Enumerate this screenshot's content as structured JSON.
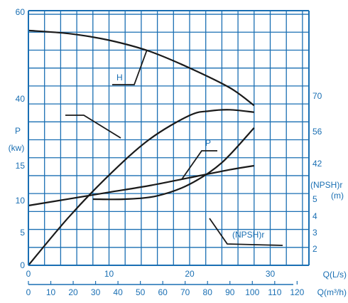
{
  "chart_data": {
    "type": "line",
    "title": "",
    "xlabel": "Q(L/s)",
    "xlabel_secondary": "Q(m³/h)",
    "xlim": [
      0,
      35
    ],
    "x_ticks": [
      "0",
      "10",
      "20",
      "30"
    ],
    "x2_ticks": [
      "0",
      "10",
      "20",
      "30",
      "40",
      "50",
      "60",
      "70",
      "80",
      "90",
      "100",
      "110",
      "120"
    ],
    "left_axis_labels": {
      "head": [
        "60",
        "40"
      ],
      "power_label": "P",
      "power_unit": "(kw)",
      "power": [
        "15",
        "10",
        "5",
        "0"
      ]
    },
    "right_axis_labels": {
      "efficiency": [
        "70",
        "56",
        "42"
      ],
      "npsh_label": "(NPSH)r",
      "npsh_unit": "(m)",
      "npsh": [
        "5",
        "4",
        "3",
        "2"
      ]
    },
    "grid": true,
    "series": [
      {
        "name": "H",
        "x": [
          0,
          5,
          10,
          15,
          20,
          25,
          28
        ],
        "y": [
          55.5,
          54.8,
          53.3,
          50.8,
          47.0,
          42.5,
          38.5
        ]
      },
      {
        "name": "",
        "x": [
          0,
          5,
          10,
          15,
          20,
          22.5,
          25,
          28
        ],
        "y": [
          0,
          19.5,
          36.5,
          51.0,
          60.7,
          62.5,
          63.0,
          62.0
        ]
      },
      {
        "name": "P",
        "x": [
          0,
          5,
          10,
          15,
          20,
          25,
          28
        ],
        "y": [
          9.0,
          10.0,
          11.0,
          12.0,
          13.2,
          14.4,
          15.0
        ]
      },
      {
        "name": "(NPSH)r",
        "x": [
          8,
          12,
          16,
          20,
          24,
          28
        ],
        "y": [
          5.0,
          5.0,
          5.2,
          5.9,
          7.2,
          9.3
        ]
      }
    ],
    "curve_labels": {
      "head": "H",
      "power": "P",
      "npsh": "(NPSH)r"
    }
  }
}
